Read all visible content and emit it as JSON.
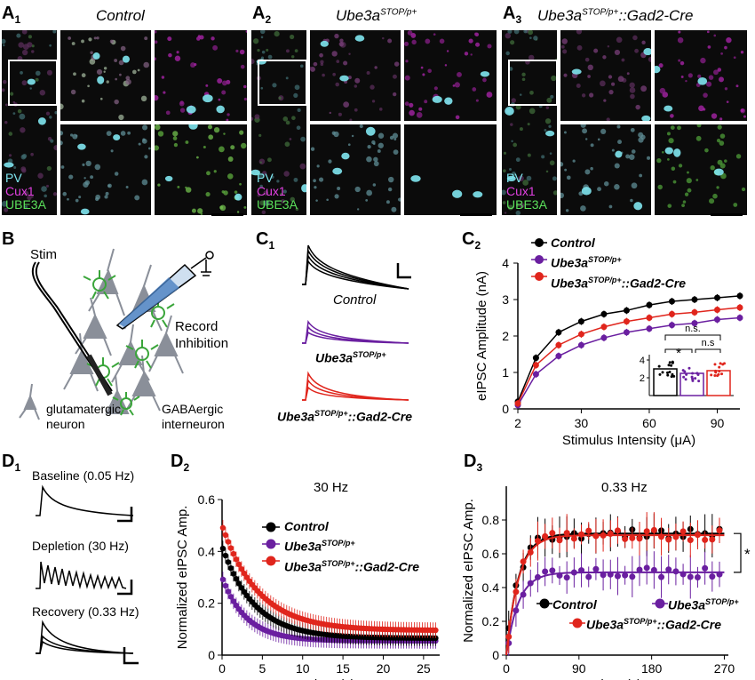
{
  "panel_a1": {
    "label": "A",
    "sub": "1",
    "title": "Control",
    "legend": [
      "PV",
      "Cux1",
      "UBE3A"
    ]
  },
  "panel_a2": {
    "label": "A",
    "sub": "2",
    "title_main": "Ube3a",
    "title_sup": "STOP/p+",
    "legend": [
      "PV",
      "Cux1",
      "UBE3A"
    ]
  },
  "panel_a3": {
    "label": "A",
    "sub": "3",
    "title_main": "Ube3a",
    "title_sup": "STOP/p+",
    "title_tail": "::Gad2-Cre",
    "legend": [
      "PV",
      "Cux1",
      "UBE3A"
    ]
  },
  "panel_b": {
    "label": "B",
    "stim": "Stim",
    "record_line1": "Record",
    "record_line2": "Inhibition",
    "glut_line1": "glutamatergic",
    "glut_line2": "neuron",
    "gaba_line1": "GABAergic",
    "gaba_line2": "interneuron"
  },
  "panel_c1": {
    "label": "C",
    "sub": "1",
    "control": "Control",
    "ube_main": "Ube3a",
    "ube_sup": "STOP/p+",
    "gad_main": "Ube3a",
    "gad_sup": "STOP/p+",
    "gad_tail": "::Gad2-Cre"
  },
  "panel_c2": {
    "label": "C",
    "sub": "2",
    "chart_data": {
      "type": "line",
      "xlabel": "Stimulus Intensity (μA)",
      "ylabel": "eIPSC Amplitude (nA)",
      "x": [
        2,
        10,
        20,
        30,
        40,
        50,
        60,
        70,
        80,
        90,
        100
      ],
      "xticks": [
        2,
        30,
        60,
        90
      ],
      "yticks": [
        0,
        1,
        2,
        3,
        4
      ],
      "ylim": [
        0,
        4
      ],
      "series": [
        {
          "name": "Control",
          "color": "#000000",
          "values": [
            0.2,
            1.4,
            2.1,
            2.4,
            2.6,
            2.7,
            2.85,
            2.95,
            3.0,
            3.05,
            3.1
          ]
        },
        {
          "name": "Ube3aSTOP/p+",
          "color": "#6a1fa0",
          "values": [
            0.1,
            0.95,
            1.45,
            1.75,
            1.95,
            2.1,
            2.2,
            2.3,
            2.35,
            2.45,
            2.5
          ]
        },
        {
          "name": "Ube3aSTOP/p+::Gad2-Cre",
          "color": "#e0251c",
          "values": [
            0.15,
            1.2,
            1.75,
            2.05,
            2.25,
            2.4,
            2.5,
            2.6,
            2.65,
            2.72,
            2.78
          ]
        }
      ],
      "inset": {
        "type": "bar",
        "values": [
          3.0,
          2.5,
          2.8
        ],
        "ylim": [
          0,
          6
        ],
        "yticks": [
          2,
          4
        ],
        "annotations": [
          "n.s.",
          "*",
          "n.s"
        ]
      }
    },
    "legend": {
      "control": "Control",
      "ube_main": "Ube3a",
      "ube_sup": "STOP/p+",
      "gad_main": "Ube3a",
      "gad_sup": "STOP/p+",
      "gad_tail": "::Gad2-Cre"
    }
  },
  "panel_d1": {
    "label": "D",
    "sub": "1",
    "baseline": "Baseline (0.05 Hz)",
    "depletion": "Depletion (30 Hz)",
    "recovery": "Recovery (0.33 Hz)"
  },
  "panel_d2": {
    "label": "D",
    "sub": "2",
    "chart_data": {
      "type": "scatter",
      "title": "30 Hz",
      "xlabel": "Time (s)",
      "ylabel": "Normalized eIPSC Amp.",
      "xticks": [
        0,
        5,
        10,
        15,
        20,
        25
      ],
      "yticks": [
        0,
        0.2,
        0.4,
        0.6
      ],
      "xlim": [
        0,
        27
      ],
      "ylim": [
        0,
        0.6
      ],
      "series": [
        {
          "name": "Control",
          "color": "#000000",
          "start": 0.42,
          "plateau": 0.065,
          "tau": 4.0
        },
        {
          "name": "Ube3aSTOP/p+",
          "color": "#6a1fa0",
          "start": 0.3,
          "plateau": 0.055,
          "tau": 3.0
        },
        {
          "name": "Ube3aSTOP/p+::Gad2-Cre",
          "color": "#e0251c",
          "start": 0.5,
          "plateau": 0.095,
          "tau": 4.5
        }
      ]
    },
    "legend": {
      "control": "Control",
      "ube_main": "Ube3a",
      "ube_sup": "STOP/p+",
      "gad_main": "Ube3a",
      "gad_sup": "STOP/p+",
      "gad_tail": "::Gad2-Cre"
    }
  },
  "panel_d3": {
    "label": "D",
    "sub": "3",
    "chart_data": {
      "type": "scatter",
      "title": "0.33 Hz",
      "xlabel": "Time (s)",
      "ylabel": "Normalized eIPSC Amp.",
      "xticks": [
        0,
        90,
        180,
        270
      ],
      "yticks": [
        0,
        0.2,
        0.4,
        0.6,
        0.8
      ],
      "xlim": [
        0,
        275
      ],
      "ylim": [
        0,
        1.0
      ],
      "series": [
        {
          "name": "Control",
          "color": "#000000",
          "plateau": 0.72,
          "tau": 15
        },
        {
          "name": "Ube3aSTOP/p+",
          "color": "#6a1fa0",
          "plateau": 0.49,
          "tau": 15
        },
        {
          "name": "Ube3aSTOP/p+::Gad2-Cre",
          "color": "#e0251c",
          "plateau": 0.71,
          "tau": 15
        }
      ],
      "annotation": "*"
    },
    "legend": {
      "control": "Control",
      "ube_main": "Ube3a",
      "ube_sup": "STOP/p+",
      "gad_main": "Ube3a",
      "gad_sup": "STOP/p+",
      "gad_tail": "::Gad2-Cre"
    }
  }
}
